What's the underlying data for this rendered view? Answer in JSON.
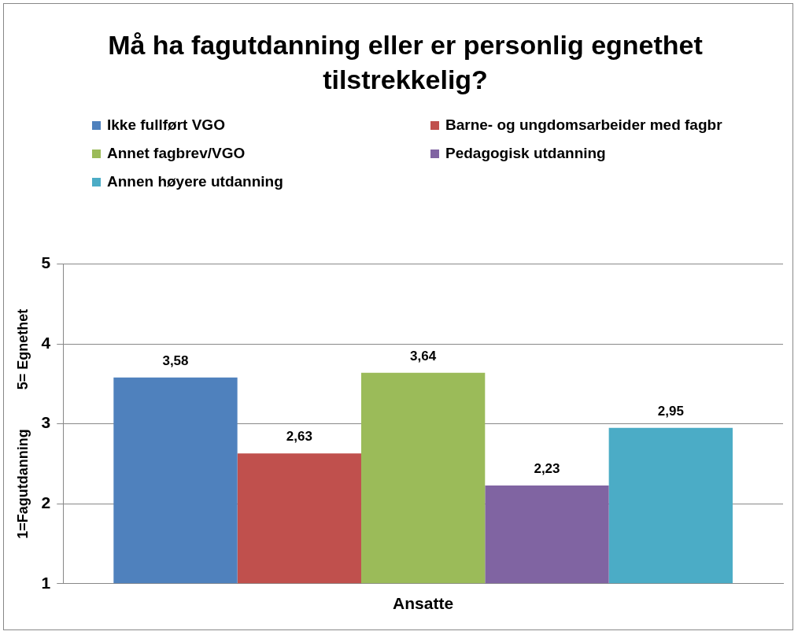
{
  "chart_data": {
    "type": "bar",
    "title": "Må ha fagutdanning eller er personlig egnethet tilstrekkelig?",
    "ylabel": "1=Fagutdanning          5= Egnethet",
    "categories": [
      "Ansatte"
    ],
    "series": [
      {
        "name": "Ikke fullført VGO",
        "color": "#4f81bd",
        "values": [
          3.58
        ],
        "value_labels": [
          "3,58"
        ]
      },
      {
        "name": "Barne- og ungdomsarbeider med fagbr",
        "color": "#c0504d",
        "values": [
          2.63
        ],
        "value_labels": [
          "2,63"
        ]
      },
      {
        "name": "Annet fagbrev/VGO",
        "color": "#9bbb59",
        "values": [
          3.64
        ],
        "value_labels": [
          "3,64"
        ]
      },
      {
        "name": "Pedagogisk utdanning",
        "color": "#8064a2",
        "values": [
          2.23
        ],
        "value_labels": [
          "2,23"
        ]
      },
      {
        "name": "Annen høyere utdanning",
        "color": "#4bacc6",
        "values": [
          2.95
        ],
        "value_labels": [
          "2,95"
        ]
      }
    ],
    "ylim": [
      1,
      5
    ],
    "yticks": [
      1,
      2,
      3,
      4,
      5
    ],
    "grid": "y",
    "legend": "top"
  }
}
